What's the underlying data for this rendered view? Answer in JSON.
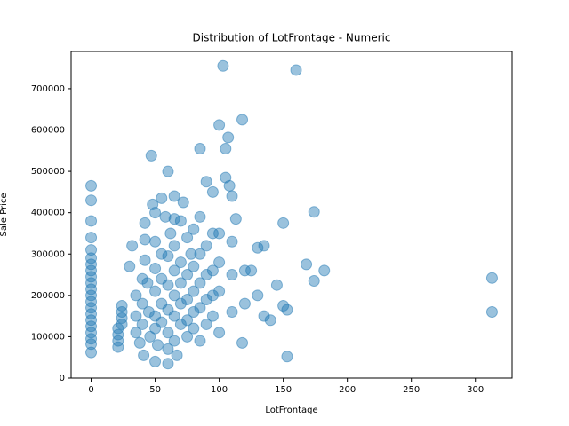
{
  "chart_data": {
    "type": "scatter",
    "title": "Distribution of LotFrontage - Numeric",
    "x_label": "LotFrontage",
    "y_label": "Sale Price",
    "color": "#1f77b4",
    "xlim": [
      -15.65,
      328.65
    ],
    "ylim": [
      0,
      790000
    ],
    "xticks": [
      0,
      50,
      100,
      150,
      200,
      250,
      300
    ],
    "yticks": [
      0,
      100000,
      200000,
      300000,
      400000,
      500000,
      600000,
      700000
    ],
    "x": [
      0,
      0,
      0,
      0,
      0,
      0,
      0,
      0,
      0,
      0,
      0,
      0,
      0,
      0,
      0,
      0,
      0,
      0,
      0,
      0,
      0,
      21,
      21,
      21,
      21,
      24,
      24,
      24,
      24,
      30,
      32,
      35,
      35,
      35,
      38,
      40,
      40,
      40,
      42,
      42,
      42,
      41,
      44,
      45,
      46,
      47,
      48,
      50,
      50,
      50,
      50,
      50,
      50,
      50,
      52,
      55,
      55,
      55,
      55,
      55,
      58,
      60,
      60,
      60,
      60,
      60,
      60,
      60,
      62,
      65,
      65,
      65,
      65,
      65,
      65,
      65,
      67,
      70,
      70,
      70,
      70,
      70,
      72,
      75,
      75,
      75,
      75,
      75,
      78,
      80,
      80,
      80,
      80,
      80,
      85,
      85,
      85,
      85,
      85,
      85,
      90,
      90,
      90,
      90,
      90,
      95,
      95,
      95,
      95,
      95,
      100,
      100,
      100,
      100,
      100,
      103,
      105,
      105,
      107,
      108,
      110,
      110,
      110,
      110,
      113,
      118,
      118,
      120,
      120,
      125,
      130,
      130,
      135,
      135,
      140,
      145,
      150,
      150,
      153,
      153,
      160,
      168,
      174,
      174,
      182,
      313,
      313
    ],
    "y": [
      465000,
      430000,
      380000,
      340000,
      310000,
      290000,
      275000,
      260000,
      245000,
      230000,
      215000,
      200000,
      185000,
      170000,
      155000,
      140000,
      125000,
      110000,
      95000,
      82000,
      62000,
      75000,
      90000,
      105000,
      120000,
      130000,
      145000,
      160000,
      175000,
      270000,
      320000,
      200000,
      150000,
      110000,
      85000,
      240000,
      180000,
      130000,
      375000,
      335000,
      285000,
      55000,
      230000,
      160000,
      100000,
      538000,
      420000,
      400000,
      330000,
      265000,
      210000,
      150000,
      120000,
      40000,
      80000,
      435000,
      300000,
      240000,
      180000,
      135000,
      390000,
      500000,
      295000,
      225000,
      165000,
      110000,
      70000,
      35000,
      350000,
      440000,
      385000,
      320000,
      260000,
      200000,
      150000,
      90000,
      55000,
      380000,
      280000,
      230000,
      180000,
      130000,
      425000,
      340000,
      250000,
      190000,
      140000,
      100000,
      300000,
      360000,
      270000,
      210000,
      160000,
      120000,
      555000,
      390000,
      300000,
      230000,
      170000,
      90000,
      475000,
      320000,
      250000,
      190000,
      130000,
      450000,
      350000,
      260000,
      200000,
      150000,
      612000,
      350000,
      280000,
      210000,
      110000,
      755000,
      485000,
      555000,
      582000,
      465000,
      440000,
      330000,
      250000,
      160000,
      385000,
      625000,
      85000,
      260000,
      180000,
      260000,
      315000,
      200000,
      320000,
      150000,
      140000,
      225000,
      375000,
      175000,
      52000,
      165000,
      745000,
      275000,
      402000,
      235000,
      260000,
      242000,
      160000
    ]
  }
}
